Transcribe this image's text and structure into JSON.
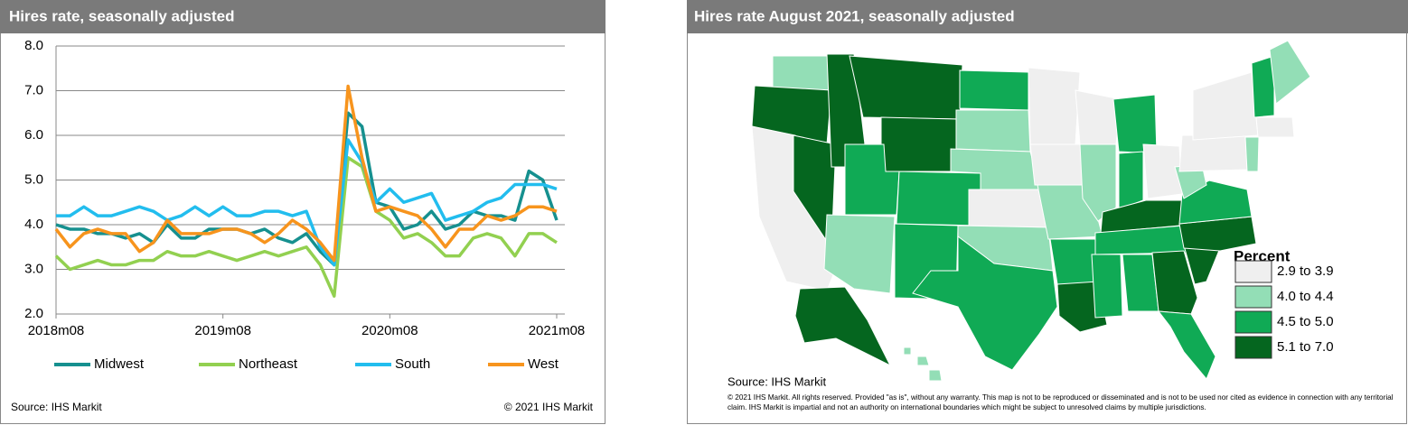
{
  "chart_data": [
    {
      "type": "line",
      "title": "Hires rate, seasonally adjusted",
      "categories": [
        "2018m08",
        null,
        null,
        null,
        null,
        null,
        null,
        null,
        null,
        null,
        null,
        null,
        "2019m08",
        null,
        null,
        null,
        null,
        null,
        null,
        null,
        null,
        null,
        null,
        null,
        "2020m08",
        null,
        null,
        null,
        null,
        null,
        null,
        null,
        null,
        null,
        null,
        null,
        "2021m08"
      ],
      "series": [
        {
          "name": "Midwest",
          "color": "#16908f",
          "values": [
            4.0,
            3.9,
            3.9,
            3.8,
            3.8,
            3.7,
            3.8,
            3.6,
            4.0,
            3.7,
            3.7,
            3.9,
            3.9,
            3.9,
            3.8,
            3.9,
            3.7,
            3.6,
            3.8,
            3.4,
            3.1,
            6.5,
            6.2,
            4.5,
            4.4,
            3.9,
            4.0,
            4.3,
            3.9,
            4.0,
            4.3,
            4.2,
            4.2,
            4.1,
            5.2,
            5.0,
            4.1
          ]
        },
        {
          "name": "Northeast",
          "color": "#92d050",
          "values": [
            3.3,
            3.0,
            3.1,
            3.2,
            3.1,
            3.1,
            3.2,
            3.2,
            3.4,
            3.3,
            3.3,
            3.4,
            3.3,
            3.2,
            3.3,
            3.4,
            3.3,
            3.4,
            3.5,
            3.1,
            2.4,
            5.5,
            5.3,
            4.3,
            4.1,
            3.7,
            3.8,
            3.6,
            3.3,
            3.3,
            3.7,
            3.8,
            3.7,
            3.3,
            3.8,
            3.8,
            3.6
          ]
        },
        {
          "name": "South",
          "color": "#22bdee",
          "values": [
            4.2,
            4.2,
            4.4,
            4.2,
            4.2,
            4.3,
            4.4,
            4.3,
            4.1,
            4.2,
            4.4,
            4.2,
            4.4,
            4.2,
            4.2,
            4.3,
            4.3,
            4.2,
            4.3,
            3.5,
            3.1,
            5.9,
            5.4,
            4.5,
            4.8,
            4.5,
            4.6,
            4.7,
            4.1,
            4.2,
            4.3,
            4.5,
            4.6,
            4.9,
            4.9,
            4.9,
            4.8
          ]
        },
        {
          "name": "West",
          "color": "#f7941d",
          "values": [
            3.9,
            3.5,
            3.8,
            3.9,
            3.8,
            3.8,
            3.4,
            3.6,
            4.1,
            3.8,
            3.8,
            3.8,
            3.9,
            3.9,
            3.8,
            3.6,
            3.8,
            4.1,
            3.9,
            3.6,
            3.2,
            7.1,
            5.5,
            4.3,
            4.4,
            4.3,
            4.2,
            3.9,
            3.5,
            3.9,
            3.9,
            4.2,
            4.1,
            4.2,
            4.4,
            4.4,
            4.3
          ]
        }
      ],
      "ylim": [
        2,
        8
      ],
      "yticks": [
        {
          "value": 2,
          "label": "2.0"
        },
        {
          "value": 3,
          "label": "3.0"
        },
        {
          "value": 4,
          "label": "4.0"
        },
        {
          "value": 5,
          "label": "5.0"
        },
        {
          "value": 6,
          "label": "6.0"
        },
        {
          "value": 7,
          "label": "7.0"
        },
        {
          "value": 8,
          "label": "8.0"
        }
      ],
      "grid": true,
      "legend": "bottom",
      "source": "Source: IHS Markit",
      "copyright": "© 2021 IHS Markit"
    },
    {
      "type": "choropleth",
      "title": "Hires rate August 2021, seasonally adjusted",
      "legend_title": "Percent",
      "legend": [
        {
          "label": "2.9 to 3.9",
          "color": "#efefef"
        },
        {
          "label": "4.0 to 4.4",
          "color": "#93deb6"
        },
        {
          "label": "4.5 to 5.0",
          "color": "#10aa55"
        },
        {
          "label": "5.1 to 7.0",
          "color": "#05661f"
        }
      ],
      "source": "Source: IHS Markit",
      "note": [
        "© 2021 IHS Markit. All rights reserved. Provided \"as is\", without any warranty.  This map is not to be reproduced or disseminated and is not to be used nor cited as evidence in connection with any territorial",
        "claim. IHS Markit is impartial and not an authority on international boundaries which might be subject to unresolved claims by multiple jurisdictions."
      ]
    }
  ]
}
